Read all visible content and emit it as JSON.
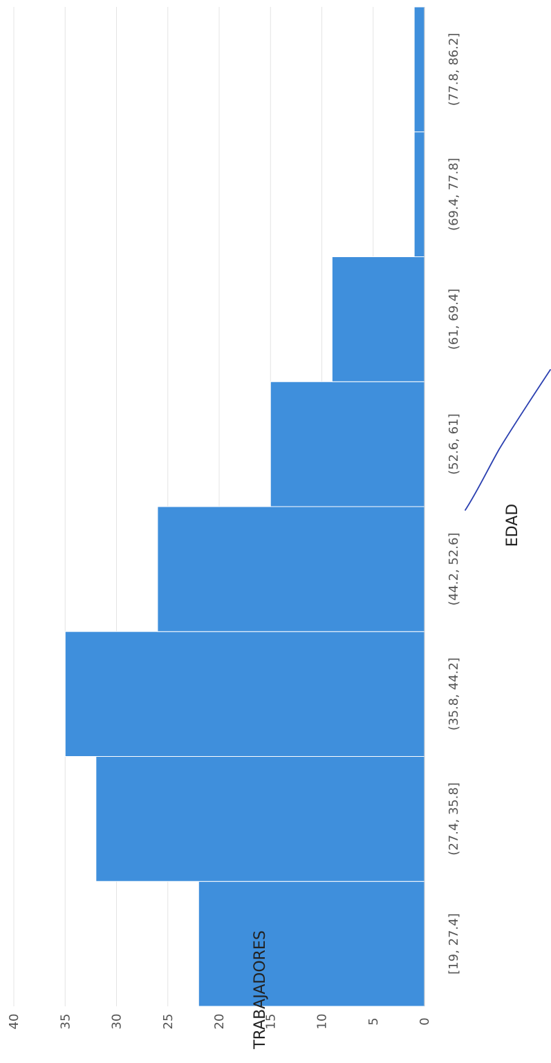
{
  "chart_data": {
    "type": "bar",
    "orientation": "rotated",
    "categories": [
      "[19, 27.4]",
      "(27.4, 35.8]",
      "(35.8, 44.2]",
      "(44.2, 52.6]",
      "(52.6, 61]",
      "(61, 69.4]",
      "(69.4, 77.8]",
      "(77.8, 86.2]"
    ],
    "values": [
      22,
      32,
      35,
      26,
      15,
      9,
      1,
      1
    ],
    "xlabel": "EDAD",
    "ylabel": "TRABAJADORES",
    "ylim": [
      0,
      40
    ],
    "yticks": [
      "0",
      "5",
      "10",
      "15",
      "20",
      "25",
      "30",
      "35",
      "40"
    ],
    "grid": true,
    "bar_color": "#3f8fdc",
    "annotation_color": "#2a3fb0"
  }
}
